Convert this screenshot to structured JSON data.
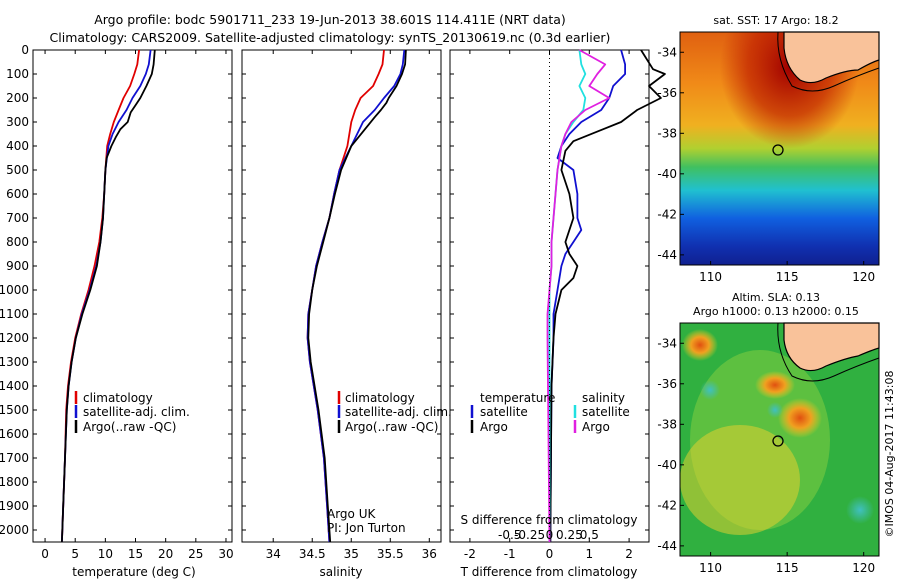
{
  "header": {
    "line1": "Argo profile: bodc 5901711_233 19-Jun-2013 38.601S 114.411E (NRT data)",
    "line2": "Climatology: CARS2009. Satellite-adjusted climatology: synTS_20130619.nc (0.3d earlier)"
  },
  "depth_ticks": [
    0,
    100,
    200,
    300,
    400,
    500,
    600,
    700,
    800,
    900,
    1000,
    1100,
    1200,
    1300,
    1400,
    1500,
    1600,
    1700,
    1800,
    1900,
    2000
  ],
  "colors": {
    "climatology": "#e00000",
    "satellite": "#1010d0",
    "argo": "#000000",
    "sat_salinity": "#20e0e0",
    "argo_salinity": "#e020e0"
  },
  "chart_data": [
    {
      "type": "line",
      "name": "temperature-profile",
      "xlabel": "temperature (deg C)",
      "ylim": [
        2050,
        0
      ],
      "xlim": [
        -2,
        31
      ],
      "xticks": [
        0,
        5,
        10,
        15,
        20,
        25,
        30
      ],
      "legend": [
        "climatology",
        "satellite-adj. clim.",
        "Argo(..raw -QC)"
      ],
      "series": [
        {
          "name": "climatology",
          "color": "#e00000",
          "points": [
            [
              15.6,
              0
            ],
            [
              15.3,
              60
            ],
            [
              14.8,
              100
            ],
            [
              14.1,
              150
            ],
            [
              13.0,
              200
            ],
            [
              12.2,
              250
            ],
            [
              11.4,
              300
            ],
            [
              10.8,
              350
            ],
            [
              10.3,
              400
            ],
            [
              10.0,
              500
            ],
            [
              9.8,
              600
            ],
            [
              9.5,
              700
            ],
            [
              9.0,
              800
            ],
            [
              8.2,
              900
            ],
            [
              7.2,
              1000
            ],
            [
              6.0,
              1100
            ],
            [
              5.0,
              1200
            ],
            [
              4.3,
              1300
            ],
            [
              3.8,
              1400
            ],
            [
              3.5,
              1500
            ],
            [
              3.3,
              1700
            ],
            [
              3.0,
              1900
            ],
            [
              2.8,
              2050
            ]
          ]
        },
        {
          "name": "satellite-adj. clim.",
          "color": "#1010d0",
          "points": [
            [
              17.5,
              0
            ],
            [
              17.2,
              60
            ],
            [
              16.7,
              100
            ],
            [
              15.8,
              150
            ],
            [
              14.5,
              200
            ],
            [
              13.5,
              250
            ],
            [
              12.2,
              300
            ],
            [
              11.2,
              350
            ],
            [
              10.5,
              400
            ],
            [
              10.0,
              500
            ],
            [
              9.8,
              600
            ],
            [
              9.6,
              700
            ],
            [
              9.2,
              800
            ],
            [
              8.5,
              900
            ],
            [
              7.4,
              1000
            ],
            [
              6.1,
              1100
            ],
            [
              5.1,
              1200
            ],
            [
              4.4,
              1300
            ],
            [
              3.9,
              1400
            ],
            [
              3.6,
              1500
            ],
            [
              3.3,
              1700
            ],
            [
              3.0,
              1900
            ],
            [
              2.8,
              2050
            ]
          ]
        },
        {
          "name": "Argo(..raw -QC)",
          "color": "#000000",
          "points": [
            [
              18.2,
              0
            ],
            [
              18.0,
              60
            ],
            [
              17.7,
              100
            ],
            [
              16.8,
              150
            ],
            [
              15.8,
              200
            ],
            [
              15.0,
              230
            ],
            [
              14.2,
              260
            ],
            [
              13.7,
              300
            ],
            [
              12.5,
              330
            ],
            [
              11.8,
              360
            ],
            [
              11.0,
              400
            ],
            [
              10.2,
              450
            ],
            [
              10.0,
              500
            ],
            [
              9.8,
              600
            ],
            [
              9.6,
              700
            ],
            [
              9.2,
              800
            ],
            [
              8.6,
              900
            ],
            [
              7.5,
              1000
            ],
            [
              6.2,
              1100
            ],
            [
              5.1,
              1200
            ],
            [
              4.4,
              1300
            ],
            [
              3.9,
              1400
            ],
            [
              3.6,
              1500
            ],
            [
              3.3,
              1700
            ],
            [
              3.0,
              1900
            ],
            [
              2.8,
              2050
            ]
          ]
        }
      ]
    },
    {
      "type": "line",
      "name": "salinity-profile",
      "xlabel": "salinity",
      "ylim": [
        2050,
        0
      ],
      "xlim": [
        33.6,
        36.15
      ],
      "xticks": [
        34,
        34.5,
        35,
        35.5,
        36
      ],
      "legend": [
        "climatology",
        "satellite-adj. clim.",
        "Argo(..raw -QC)"
      ],
      "annotation_lines": [
        "Argo UK",
        "PI: Jon Turton"
      ],
      "series": [
        {
          "name": "climatology",
          "color": "#e00000",
          "points": [
            [
              35.42,
              0
            ],
            [
              35.4,
              60
            ],
            [
              35.35,
              100
            ],
            [
              35.28,
              150
            ],
            [
              35.12,
              200
            ],
            [
              35.05,
              250
            ],
            [
              35.0,
              300
            ],
            [
              34.95,
              400
            ],
            [
              34.85,
              500
            ],
            [
              34.78,
              600
            ],
            [
              34.72,
              700
            ],
            [
              34.63,
              800
            ],
            [
              34.55,
              900
            ],
            [
              34.5,
              1000
            ],
            [
              34.45,
              1100
            ],
            [
              34.44,
              1200
            ],
            [
              34.47,
              1300
            ],
            [
              34.52,
              1400
            ],
            [
              34.57,
              1500
            ],
            [
              34.61,
              1600
            ],
            [
              34.65,
              1700
            ],
            [
              34.69,
              1900
            ],
            [
              34.72,
              2050
            ]
          ]
        },
        {
          "name": "satellite-adj. clim.",
          "color": "#1010d0",
          "points": [
            [
              35.68,
              0
            ],
            [
              35.66,
              60
            ],
            [
              35.63,
              100
            ],
            [
              35.55,
              150
            ],
            [
              35.42,
              200
            ],
            [
              35.3,
              250
            ],
            [
              35.15,
              300
            ],
            [
              35.0,
              400
            ],
            [
              34.85,
              500
            ],
            [
              34.78,
              600
            ],
            [
              34.72,
              700
            ],
            [
              34.63,
              800
            ],
            [
              34.55,
              900
            ],
            [
              34.5,
              1000
            ],
            [
              34.45,
              1100
            ],
            [
              34.44,
              1200
            ],
            [
              34.47,
              1300
            ],
            [
              34.52,
              1400
            ],
            [
              34.57,
              1500
            ],
            [
              34.61,
              1600
            ],
            [
              34.65,
              1700
            ],
            [
              34.69,
              1900
            ],
            [
              34.72,
              2050
            ]
          ]
        },
        {
          "name": "Argo(..raw -QC)",
          "color": "#000000",
          "points": [
            [
              35.7,
              0
            ],
            [
              35.69,
              60
            ],
            [
              35.65,
              100
            ],
            [
              35.58,
              150
            ],
            [
              35.48,
              200
            ],
            [
              35.45,
              220
            ],
            [
              35.38,
              250
            ],
            [
              35.3,
              280
            ],
            [
              35.2,
              320
            ],
            [
              35.1,
              360
            ],
            [
              35.0,
              400
            ],
            [
              34.87,
              500
            ],
            [
              34.79,
              600
            ],
            [
              34.72,
              700
            ],
            [
              34.64,
              800
            ],
            [
              34.56,
              900
            ],
            [
              34.5,
              1000
            ],
            [
              34.46,
              1100
            ],
            [
              34.45,
              1200
            ],
            [
              34.48,
              1300
            ],
            [
              34.53,
              1400
            ],
            [
              34.58,
              1500
            ],
            [
              34.62,
              1600
            ],
            [
              34.66,
              1700
            ],
            [
              34.7,
              1900
            ],
            [
              34.73,
              2050
            ]
          ]
        }
      ]
    },
    {
      "type": "line",
      "name": "difference-profile",
      "xlabel": "T difference from climatology",
      "xlabel_top": "S difference from climatology",
      "ylim": [
        2050,
        0
      ],
      "xlim": [
        -2.5,
        2.5
      ],
      "xticks": [
        -2,
        -1,
        0,
        1,
        2
      ],
      "xticks_salinity": [
        -0.5,
        -0.25,
        0,
        0.25,
        0.5
      ],
      "xticks_salinity_labels": [
        "-0.5",
        "-0.25",
        "0",
        "0.25",
        "0.5"
      ],
      "legend": {
        "temperature_header": "temperature",
        "salinity_header": "salinity",
        "items": [
          {
            "label": "satellite",
            "color": "#1010d0"
          },
          {
            "label": "Argo",
            "color": "#000000"
          },
          {
            "label": "satellite",
            "color": "#20e0e0"
          },
          {
            "label": "Argo",
            "color": "#e020e0"
          }
        ]
      },
      "series": [
        {
          "name": "T satellite",
          "color": "#1010d0",
          "points": [
            [
              1.8,
              0
            ],
            [
              1.9,
              60
            ],
            [
              1.9,
              100
            ],
            [
              1.6,
              150
            ],
            [
              1.5,
              200
            ],
            [
              1.3,
              250
            ],
            [
              0.8,
              300
            ],
            [
              0.5,
              350
            ],
            [
              0.3,
              400
            ],
            [
              0.2,
              450
            ],
            [
              0.6,
              500
            ],
            [
              0.7,
              600
            ],
            [
              0.7,
              700
            ],
            [
              0.8,
              750
            ],
            [
              0.6,
              800
            ],
            [
              0.4,
              850
            ],
            [
              0.3,
              900
            ],
            [
              0.2,
              1000
            ],
            [
              0.1,
              1100
            ],
            [
              0.1,
              1200
            ],
            [
              0.05,
              1400
            ],
            [
              0.02,
              2050
            ]
          ]
        },
        {
          "name": "T Argo",
          "color": "#000000",
          "points": [
            [
              2.3,
              0
            ],
            [
              2.6,
              80
            ],
            [
              2.9,
              100
            ],
            [
              2.5,
              150
            ],
            [
              2.8,
              200
            ],
            [
              2.2,
              250
            ],
            [
              1.8,
              300
            ],
            [
              1.2,
              340
            ],
            [
              0.6,
              380
            ],
            [
              0.4,
              420
            ],
            [
              0.3,
              500
            ],
            [
              0.5,
              600
            ],
            [
              0.6,
              700
            ],
            [
              0.4,
              800
            ],
            [
              0.5,
              850
            ],
            [
              0.7,
              900
            ],
            [
              0.6,
              950
            ],
            [
              0.3,
              1000
            ],
            [
              0.15,
              1100
            ],
            [
              0.1,
              1200
            ],
            [
              0.05,
              1400
            ],
            [
              0.02,
              2050
            ]
          ]
        },
        {
          "name": "S satellite",
          "color": "#20e0e0",
          "points": [
            [
              0.75,
              0
            ],
            [
              0.8,
              60
            ],
            [
              0.9,
              100
            ],
            [
              0.75,
              150
            ],
            [
              0.9,
              200
            ],
            [
              0.85,
              250
            ],
            [
              0.6,
              300
            ],
            [
              0.4,
              350
            ],
            [
              0.3,
              400
            ],
            [
              0.2,
              500
            ],
            [
              0.15,
              600
            ],
            [
              0.1,
              700
            ],
            [
              0.05,
              800
            ],
            [
              0.05,
              900
            ],
            [
              0.0,
              1000
            ],
            [
              0.0,
              1100
            ],
            [
              0.0,
              1200
            ],
            [
              0.0,
              2050
            ]
          ]
        },
        {
          "name": "S Argo",
          "color": "#e020e0",
          "points": [
            [
              0.75,
              0
            ],
            [
              1.4,
              60
            ],
            [
              1.2,
              100
            ],
            [
              1.0,
              150
            ],
            [
              1.5,
              200
            ],
            [
              0.9,
              250
            ],
            [
              0.55,
              300
            ],
            [
              0.4,
              350
            ],
            [
              0.3,
              400
            ],
            [
              0.2,
              500
            ],
            [
              0.15,
              600
            ],
            [
              0.1,
              700
            ],
            [
              0.05,
              800
            ],
            [
              0.05,
              900
            ],
            [
              0.0,
              1000
            ],
            [
              -0.05,
              1100
            ],
            [
              -0.05,
              1200
            ],
            [
              0.0,
              2050
            ]
          ]
        }
      ]
    }
  ],
  "maps": {
    "sst": {
      "title": "sat. SST: 17 Argo: 18.2",
      "yticks": [
        -34,
        -36,
        -38,
        -40,
        -42,
        -44
      ],
      "xticks": [
        110,
        115,
        120
      ]
    },
    "sla": {
      "title_line1": "Altim. SLA: 0.13",
      "title_line2": "Argo h1000: 0.13 h2000: 0.15",
      "yticks": [
        -34,
        -36,
        -38,
        -40,
        -42,
        -44
      ],
      "xticks": [
        110,
        115,
        120
      ]
    },
    "credit": "©IMOS 04-Aug-2017 11:43:08"
  }
}
